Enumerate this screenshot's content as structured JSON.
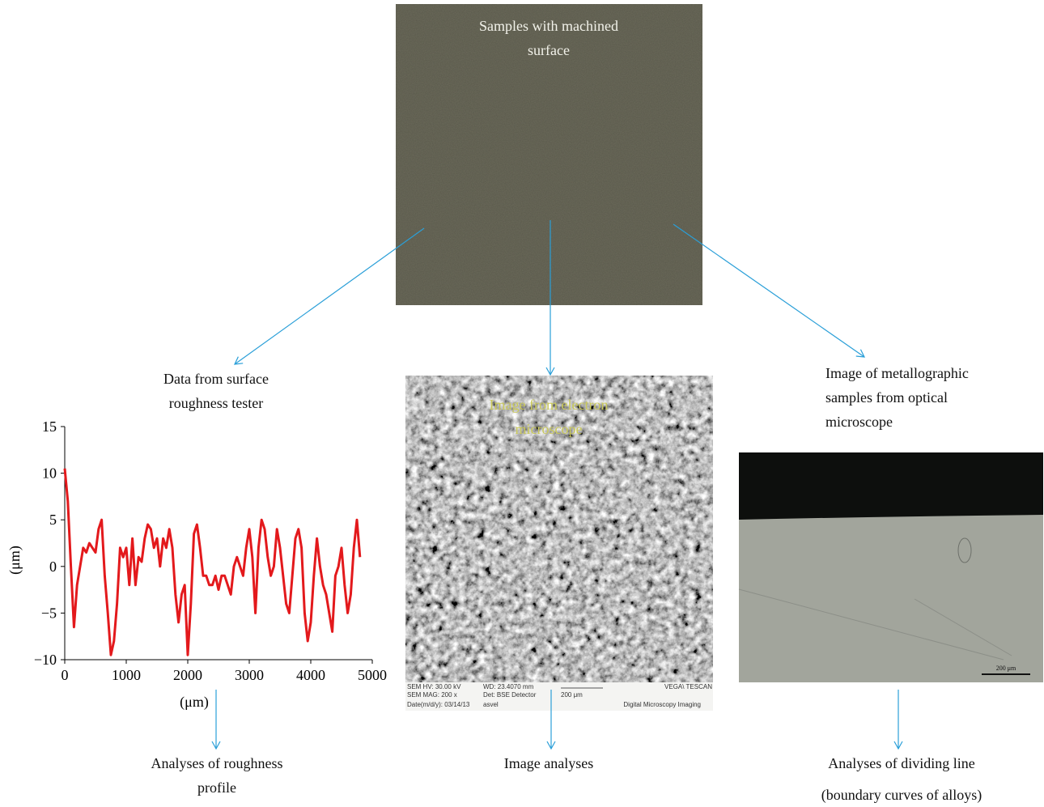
{
  "top_image": {
    "caption": "Samples with machined surface"
  },
  "left_branch": {
    "label": "Data from surface roughness tester",
    "result": "Analyses of roughness profile"
  },
  "center_branch": {
    "caption": "Image from electron microscope",
    "result": "Image analyses",
    "info": [
      "SEM HV: 30.00 kV",
      "WD: 23.4070 mm",
      "VEGA\\ TESCAN",
      "SEM MAG: 200 x",
      "Det: BSE Detector",
      "200 μm",
      "Date(m/d/y): 03/14/13",
      "asvel",
      "Digital Microscopy Imaging"
    ]
  },
  "right_branch": {
    "label": "Image of metallographic samples from optical microscope",
    "scale": "200 μm",
    "result": "Analyses of dividing line",
    "result_note": "(boundary curves of alloys)"
  },
  "chart_data": {
    "type": "line",
    "xlabel": "(μm)",
    "ylabel": "(μm)",
    "color": "#e3191c",
    "x": [
      0,
      50,
      100,
      150,
      200,
      250,
      300,
      350,
      400,
      450,
      500,
      550,
      600,
      650,
      700,
      750,
      800,
      850,
      900,
      950,
      1000,
      1050,
      1100,
      1150,
      1200,
      1250,
      1300,
      1350,
      1400,
      1450,
      1500,
      1550,
      1600,
      1650,
      1700,
      1750,
      1800,
      1850,
      1900,
      1950,
      2000,
      2050,
      2100,
      2150,
      2200,
      2250,
      2300,
      2350,
      2400,
      2450,
      2500,
      2550,
      2600,
      2650,
      2700,
      2750,
      2800,
      2850,
      2900,
      2950,
      3000,
      3050,
      3100,
      3150,
      3200,
      3250,
      3300,
      3350,
      3400,
      3450,
      3500,
      3550,
      3600,
      3650,
      3700,
      3750,
      3800,
      3850,
      3900,
      3950,
      4000,
      4050,
      4100,
      4150,
      4200,
      4250,
      4300,
      4350,
      4400,
      4450,
      4500,
      4550,
      4600,
      4650,
      4700,
      4750,
      4800
    ],
    "values": [
      10.5,
      7,
      0,
      -6.5,
      -2,
      0,
      2,
      1.5,
      2.5,
      2,
      1.5,
      4,
      5,
      -1,
      -5,
      -9.5,
      -8,
      -4,
      2,
      1,
      2,
      -2,
      3,
      -2,
      1,
      0.5,
      3,
      4.5,
      4,
      2,
      3,
      0,
      3,
      2,
      4,
      2,
      -3,
      -6,
      -3,
      -2,
      -9.5,
      -4,
      3.5,
      4.5,
      2,
      -1,
      -1,
      -2,
      -2,
      -1,
      -2.5,
      -1,
      -1,
      -2,
      -3,
      0,
      1,
      0,
      -1,
      2,
      4,
      1,
      -5,
      2,
      5,
      4,
      1,
      -1,
      0,
      4,
      2,
      -1,
      -4,
      -5,
      -1,
      3,
      4,
      2,
      -5,
      -8,
      -6,
      -1,
      3,
      0,
      -2,
      -3,
      -5,
      -7,
      -1,
      0,
      2,
      -2,
      -5,
      -3,
      2,
      5,
      1
    ],
    "xlim": [
      0,
      5000
    ],
    "xticks": [
      0,
      1000,
      2000,
      3000,
      4000,
      5000
    ],
    "ylim": [
      -10,
      15
    ],
    "yticks": [
      {
        "value": -10,
        "label": "−10"
      },
      {
        "value": -5,
        "label": "−5"
      },
      0,
      5,
      10,
      15
    ]
  }
}
